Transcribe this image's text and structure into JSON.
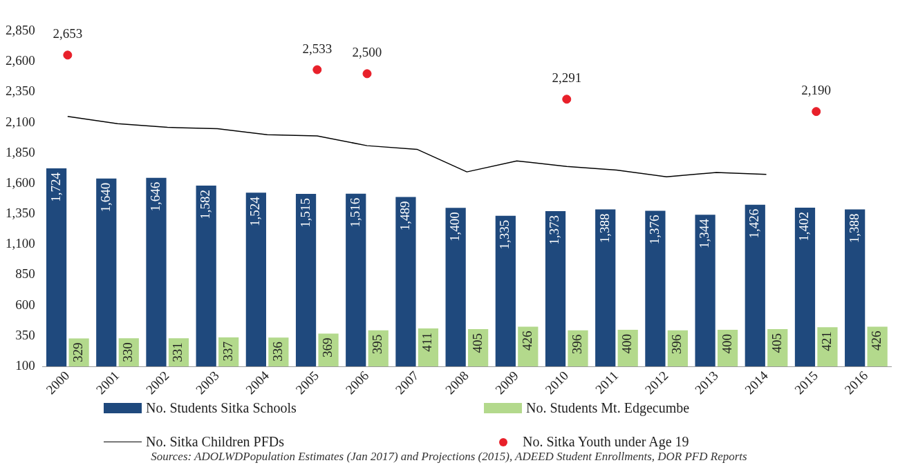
{
  "chart_data": {
    "type": "bar",
    "categories": [
      "2000",
      "2001",
      "2002",
      "2003",
      "2004",
      "2005",
      "2006",
      "2007",
      "2008",
      "2009",
      "2010",
      "2011",
      "2012",
      "2013",
      "2014",
      "2015",
      "2016"
    ],
    "series": [
      {
        "name": "No. Students Sitka Schools",
        "color": "#1f497d",
        "values": [
          1724,
          1640,
          1646,
          1582,
          1524,
          1515,
          1516,
          1489,
          1400,
          1335,
          1373,
          1388,
          1376,
          1344,
          1426,
          1402,
          1388
        ],
        "value_labels": [
          "1,724",
          "1,640",
          "1,646",
          "1,582",
          "1,524",
          "1,515",
          "1,516",
          "1,489",
          "1,400",
          "1,335",
          "1,373",
          "1,388",
          "1,376",
          "1,344",
          "1,426",
          "1,402",
          "1,388"
        ]
      },
      {
        "name": "No. Students Mt. Edgecumbe",
        "color": "#b3d98c",
        "values": [
          329,
          330,
          331,
          337,
          336,
          369,
          395,
          411,
          405,
          426,
          396,
          400,
          396,
          400,
          405,
          421,
          426
        ],
        "value_labels": [
          "329",
          "330",
          "331",
          "337",
          "336",
          "369",
          "395",
          "411",
          "405",
          "426",
          "396",
          "400",
          "396",
          "400",
          "405",
          "421",
          "426"
        ]
      },
      {
        "name": "No. Sitka Children PFDs",
        "type": "line",
        "color": "#000000",
        "values": [
          2150,
          2090,
          2060,
          2050,
          2000,
          1990,
          1910,
          1880,
          1695,
          1785,
          1740,
          1710,
          1655,
          1690,
          1675,
          null,
          null
        ]
      },
      {
        "name": "No. Sitka Youth under Age 19",
        "type": "scatter",
        "color": "#e8202a",
        "values": [
          2653,
          null,
          null,
          null,
          null,
          2533,
          2500,
          null,
          null,
          null,
          2291,
          null,
          null,
          null,
          null,
          2190,
          null
        ],
        "value_labels": [
          "2,653",
          null,
          null,
          null,
          null,
          "2,533",
          "2,500",
          null,
          null,
          null,
          "2,291",
          null,
          null,
          null,
          null,
          "2,190",
          null
        ]
      }
    ],
    "ylim": [
      100,
      2850
    ],
    "yticks": [
      {
        "value": 100,
        "label": "100"
      },
      {
        "value": 350,
        "label": "350"
      },
      {
        "value": 600,
        "label": "600"
      },
      {
        "value": 850,
        "label": "850"
      },
      {
        "value": 1100,
        "label": "1,100"
      },
      {
        "value": 1350,
        "label": "1,350"
      },
      {
        "value": 1600,
        "label": "1,600"
      },
      {
        "value": 1850,
        "label": "1,850"
      },
      {
        "value": 2100,
        "label": "2,100"
      },
      {
        "value": 2350,
        "label": "2,350"
      },
      {
        "value": 2600,
        "label": "2,600"
      },
      {
        "value": 2850,
        "label": "2,850"
      }
    ],
    "grid": false,
    "legend": "bottom",
    "annotations": [
      "Sources: ADOLWDPopulation Estimates (Jan 2017) and Projections (2015), ADEED Student Enrollments, DOR PFD Reports"
    ]
  }
}
